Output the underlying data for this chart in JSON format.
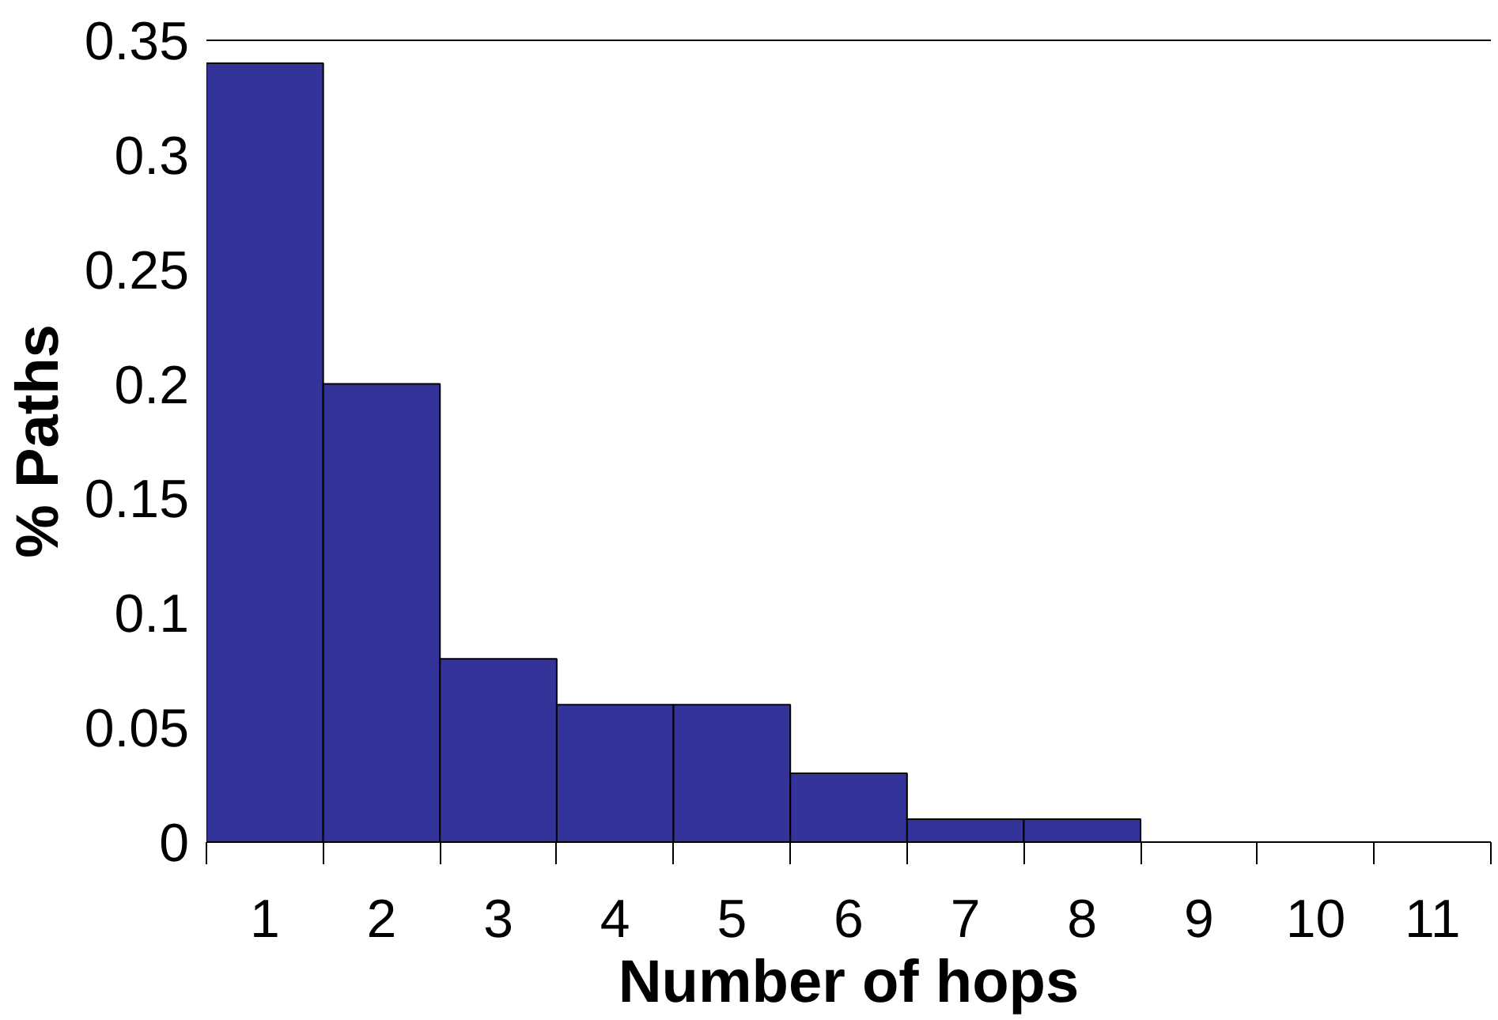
{
  "chart_data": {
    "type": "bar",
    "xlabel": "Number of hops",
    "ylabel": "% Paths",
    "categories": [
      "1",
      "2",
      "3",
      "4",
      "5",
      "6",
      "7",
      "8",
      "9",
      "10",
      "11"
    ],
    "values": [
      0.34,
      0.2,
      0.08,
      0.06,
      0.06,
      0.03,
      0.01,
      0.01,
      0,
      0,
      0
    ],
    "color": "#333399",
    "ylim": [
      0,
      0.35
    ],
    "yticks": [
      0,
      0.05,
      0.1,
      0.15,
      0.2,
      0.25,
      0.3,
      0.35
    ],
    "grid": false
  }
}
